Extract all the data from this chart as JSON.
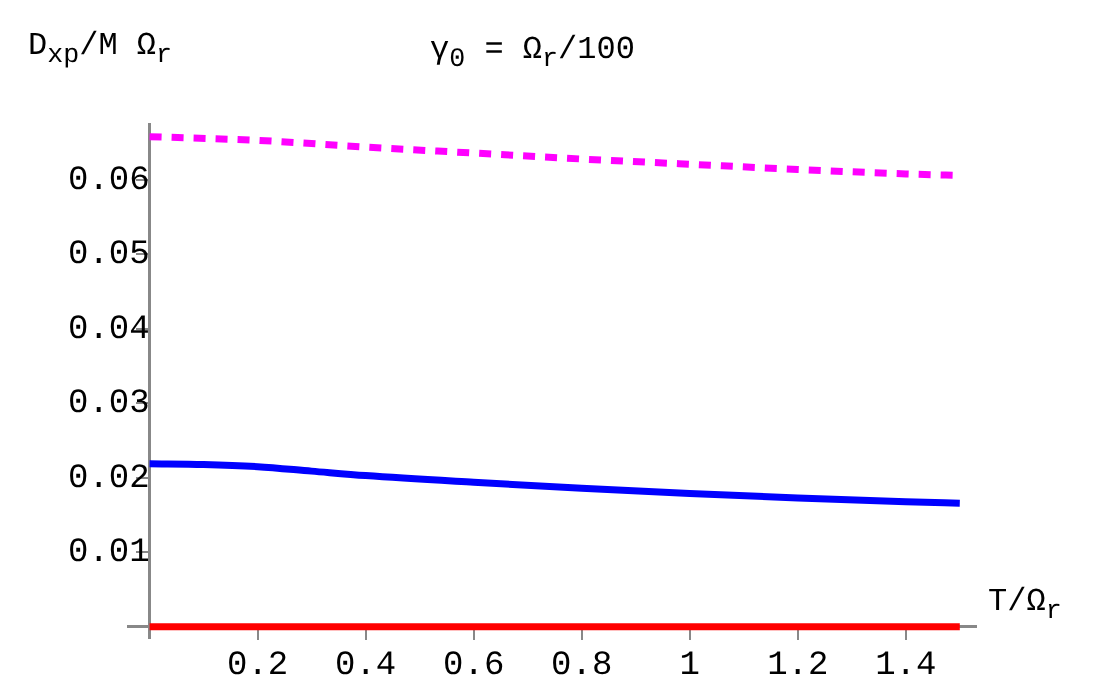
{
  "chart_data": {
    "type": "line",
    "title": "γ$_{0}$ = Ω$_{r}$/100",
    "xlabel": "T/Ω$_{r}$",
    "ylabel": "D$_{xp}$/M Ω$_{r}$",
    "xlim": [
      -0.04,
      1.53
    ],
    "ylim": [
      -0.0015,
      0.0675
    ],
    "xticks": [
      0.2,
      0.4,
      0.6,
      0.8,
      1,
      1.2,
      1.4
    ],
    "yticks": [
      0.01,
      0.02,
      0.03,
      0.04,
      0.05,
      0.06
    ],
    "grid": false,
    "legend": false,
    "marker": "none",
    "series": [
      {
        "color": "#ff00ff",
        "line_style": "dashed",
        "x": [
          0,
          0.2,
          0.4,
          0.6,
          0.8,
          1.0,
          1.2,
          1.4,
          1.5
        ],
        "values": [
          0.0658,
          0.0653,
          0.0644,
          0.0636,
          0.0628,
          0.0621,
          0.0614,
          0.0608,
          0.0606
        ]
      },
      {
        "color": "#0000ff",
        "line_style": "solid",
        "x": [
          0,
          0.1,
          0.2,
          0.3,
          0.4,
          0.6,
          0.8,
          1.0,
          1.2,
          1.4,
          1.5
        ],
        "values": [
          0.0219,
          0.0218,
          0.0215,
          0.0209,
          0.0203,
          0.0194,
          0.0186,
          0.0179,
          0.0173,
          0.0168,
          0.0166
        ]
      },
      {
        "color": "#ff0000",
        "line_style": "solid",
        "x": [
          0,
          1.5
        ],
        "values": [
          0,
          0
        ]
      }
    ]
  }
}
